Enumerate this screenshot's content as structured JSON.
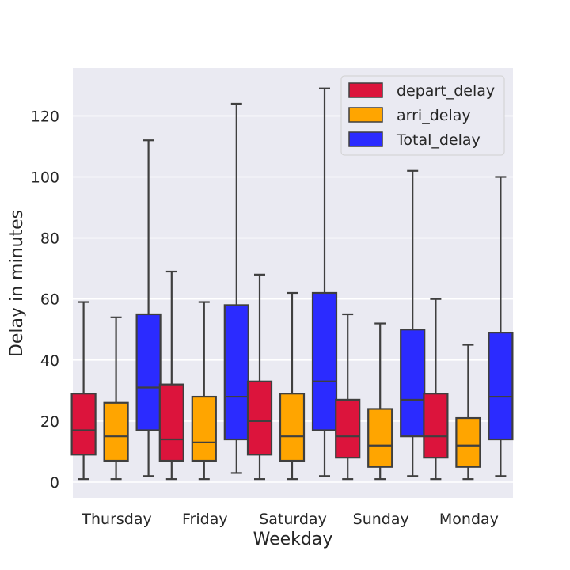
{
  "chart_data": {
    "type": "boxplot",
    "title": "",
    "xlabel": "Weekday",
    "ylabel": "Delay in minutes",
    "categories": [
      "Thursday",
      "Friday",
      "Saturday",
      "Sunday",
      "Monday"
    ],
    "ylim": [
      -5,
      136
    ],
    "yticks": [
      0,
      20,
      40,
      60,
      80,
      100,
      120
    ],
    "grid": true,
    "legend": "top-right",
    "series": [
      {
        "name": "depart_delay",
        "color": "#dc143c",
        "boxes": [
          {
            "min": 1,
            "q1": 9,
            "median": 17,
            "q3": 29,
            "max": 59
          },
          {
            "min": 1,
            "q1": 7,
            "median": 14,
            "q3": 32,
            "max": 69
          },
          {
            "min": 1,
            "q1": 9,
            "median": 20,
            "q3": 33,
            "max": 68
          },
          {
            "min": 1,
            "q1": 8,
            "median": 15,
            "q3": 27,
            "max": 55
          },
          {
            "min": 1,
            "q1": 8,
            "median": 15,
            "q3": 29,
            "max": 60
          }
        ]
      },
      {
        "name": "arri_delay",
        "color": "#ffa500",
        "boxes": [
          {
            "min": 1,
            "q1": 7,
            "median": 15,
            "q3": 26,
            "max": 54
          },
          {
            "min": 1,
            "q1": 7,
            "median": 13,
            "q3": 28,
            "max": 59
          },
          {
            "min": 1,
            "q1": 7,
            "median": 15,
            "q3": 29,
            "max": 62
          },
          {
            "min": 1,
            "q1": 5,
            "median": 12,
            "q3": 24,
            "max": 52
          },
          {
            "min": 1,
            "q1": 5,
            "median": 12,
            "q3": 21,
            "max": 45
          }
        ]
      },
      {
        "name": "Total_delay",
        "color": "#2b2bff",
        "boxes": [
          {
            "min": 2,
            "q1": 17,
            "median": 31,
            "q3": 55,
            "max": 112
          },
          {
            "min": 3,
            "q1": 14,
            "median": 28,
            "q3": 58,
            "max": 124
          },
          {
            "min": 2,
            "q1": 17,
            "median": 33,
            "q3": 62,
            "max": 129
          },
          {
            "min": 2,
            "q1": 15,
            "median": 27,
            "q3": 50,
            "max": 102
          },
          {
            "min": 2,
            "q1": 14,
            "median": 28,
            "q3": 49,
            "max": 100
          }
        ]
      }
    ]
  }
}
